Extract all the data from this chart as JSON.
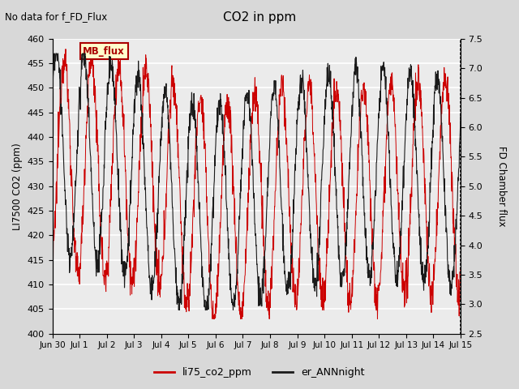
{
  "title": "CO2 in ppm",
  "left_ylabel": "LI7500 CO2 (ppm)",
  "right_ylabel": "FD Chamber flux",
  "annotation": "No data for f_FD_Flux",
  "mb_flux_label": "MB_flux",
  "legend_labels": [
    "li75_co2_ppm",
    "er_ANNnight"
  ],
  "left_ylim": [
    400,
    460
  ],
  "right_ylim": [
    2.5,
    7.5
  ],
  "xtick_labels": [
    "Jun 30",
    "Jul 1",
    "Jul 2",
    "Jul 3",
    "Jul 4",
    "Jul 5",
    "Jul 6",
    "Jul 7",
    "Jul 8",
    "Jul 9",
    "Jul 10",
    "Jul 11",
    "Jul 12",
    "Jul 13",
    "Jul 14",
    "Jul 15"
  ],
  "line1_color": "#cc0000",
  "line2_color": "#1a1a1a",
  "background_color": "#d8d8d8",
  "plot_bg_color": "#ebebeb",
  "grid_color": "#ffffff",
  "mb_flux_box_facecolor": "#ffffcc",
  "mb_flux_box_edgecolor": "#aa0000",
  "mb_flux_text_color": "#aa0000",
  "duration_days": 15.0,
  "n_points": 1500
}
